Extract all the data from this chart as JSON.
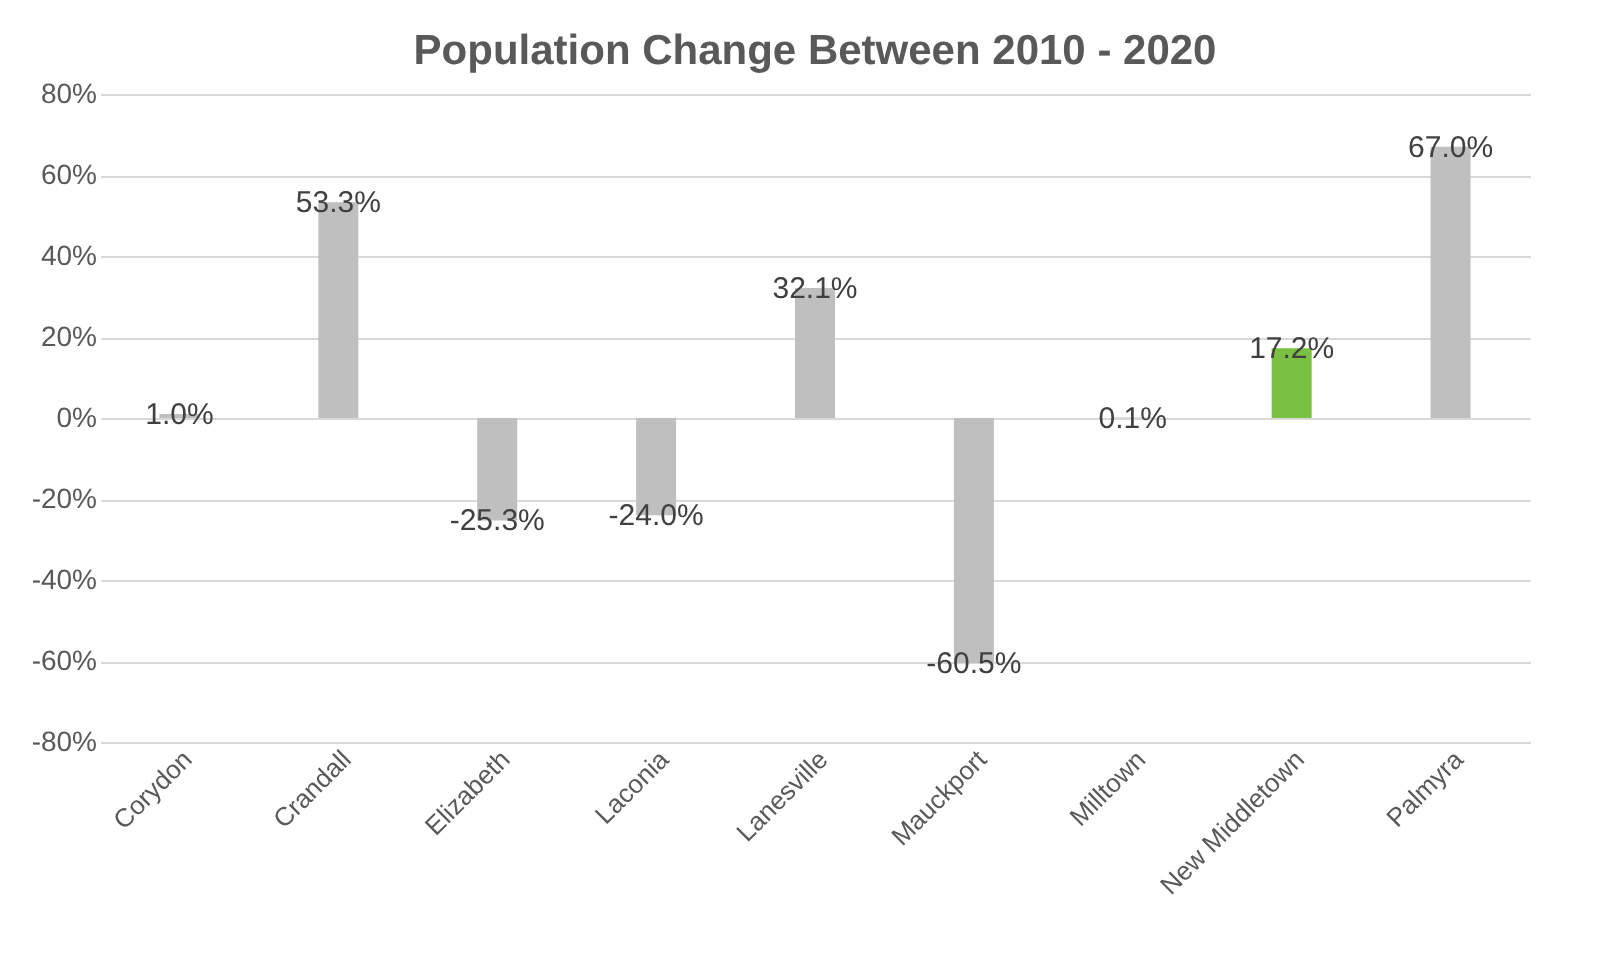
{
  "chart_data": {
    "type": "bar",
    "title": "Population Change Between 2010 - 2020",
    "categories": [
      "Corydon",
      "Crandall",
      "Elizabeth",
      "Laconia",
      "Lanesville",
      "Mauckport",
      "Milltown",
      "New Middletown",
      "Palmyra"
    ],
    "values": [
      1.0,
      53.3,
      -25.3,
      -24.0,
      32.1,
      -60.5,
      0.1,
      17.2,
      67.0
    ],
    "colors": [
      "#bfbfbf",
      "#bfbfbf",
      "#bfbfbf",
      "#bfbfbf",
      "#bfbfbf",
      "#bfbfbf",
      "#bfbfbf",
      "#7ac143",
      "#bfbfbf"
    ],
    "value_labels": [
      "1.0%",
      "53.3%",
      "-25.3%",
      "-24.0%",
      "32.1%",
      "-60.5%",
      "0.1%",
      "17.2%",
      "67.0%"
    ],
    "ylim": [
      -80,
      80
    ],
    "yticks": [
      {
        "value": -80,
        "label": "-80%"
      },
      {
        "value": -60,
        "label": "-60%"
      },
      {
        "value": -40,
        "label": "-40%"
      },
      {
        "value": -20,
        "label": "-20%"
      },
      {
        "value": 0,
        "label": "0%"
      },
      {
        "value": 20,
        "label": "20%"
      },
      {
        "value": 40,
        "label": "40%"
      },
      {
        "value": 60,
        "label": "60%"
      },
      {
        "value": 80,
        "label": "80%"
      }
    ],
    "grid": "y"
  }
}
